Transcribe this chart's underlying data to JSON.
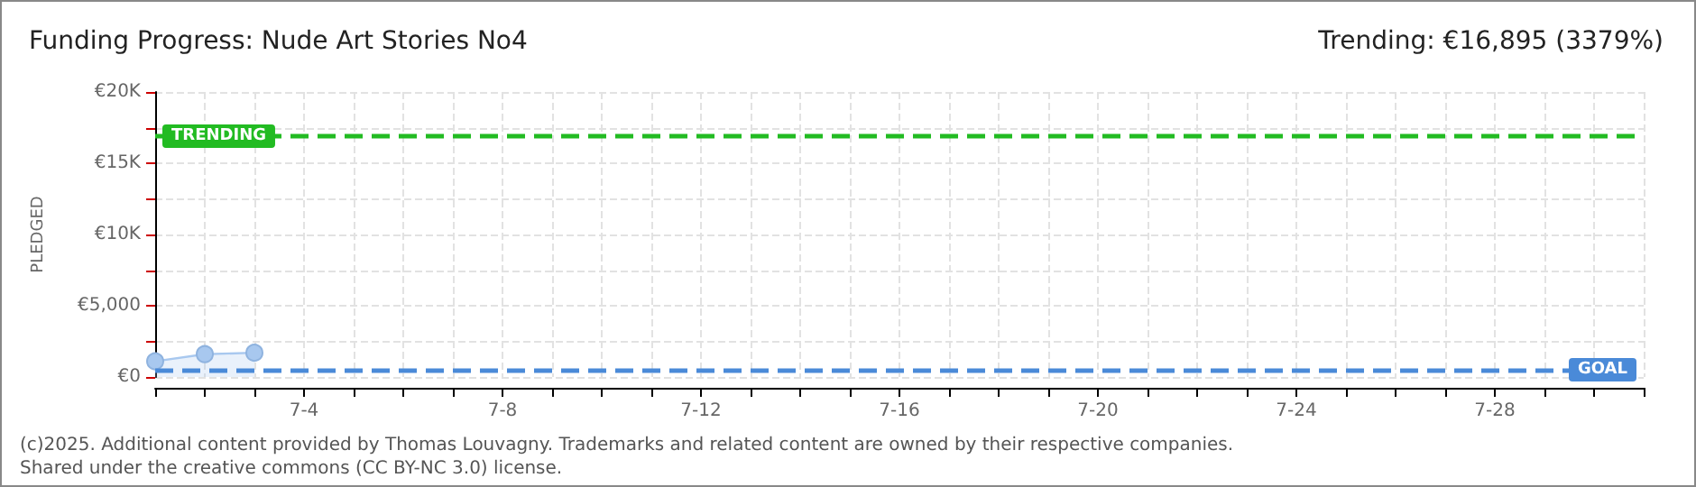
{
  "chart_data": {
    "type": "area",
    "title": "Funding Progress: Nude Art Stories No4",
    "subtitle": "Trending: €16,895 (3379%)",
    "ylabel": "PLEDGED",
    "categories": [
      null,
      null,
      null,
      "7-4",
      null,
      null,
      null,
      "7-8",
      null,
      null,
      null,
      "7-12",
      null,
      null,
      null,
      "7-16",
      null,
      null,
      null,
      "7-20",
      null,
      null,
      null,
      "7-24",
      null,
      null,
      null,
      "7-28",
      null,
      null,
      null
    ],
    "series": [
      {
        "color": "#a8c8ef",
        "values": [
          1100,
          1600,
          1700,
          null,
          null,
          null,
          null,
          null,
          null,
          null,
          null,
          null,
          null,
          null,
          null,
          null,
          null,
          null,
          null,
          null,
          null,
          null,
          null,
          null,
          null,
          null,
          null,
          null,
          null,
          null,
          null
        ]
      }
    ],
    "ylim": [
      0,
      20000
    ],
    "yticks": [
      {
        "value": 0,
        "label": "€0"
      },
      {
        "value": 2500,
        "label": null
      },
      {
        "value": 5000,
        "label": "€5,000"
      },
      {
        "value": 7500,
        "label": null
      },
      {
        "value": 10000,
        "label": "€10K"
      },
      {
        "value": 12500,
        "label": null
      },
      {
        "value": 15000,
        "label": "€15K"
      },
      {
        "value": 17500,
        "label": null
      },
      {
        "value": 20000,
        "label": "€20K"
      }
    ],
    "ref_lines": [
      {
        "axis": "y",
        "value": 16895,
        "label": "TRENDING",
        "color": "#22bb22",
        "line_style": "dashed"
      },
      {
        "axis": "y",
        "value": 500,
        "label": "GOAL",
        "color": "#4a8ad8",
        "line_style": "dashed"
      }
    ],
    "annotations": [
      "(c)2025. Additional content provided by Thomas Louvagny. Trademarks and related content are owned by their respective companies.",
      "Shared under the creative commons (CC BY-NC 3.0) license."
    ],
    "grid": true,
    "marker": "circle",
    "line_style": "solid"
  }
}
